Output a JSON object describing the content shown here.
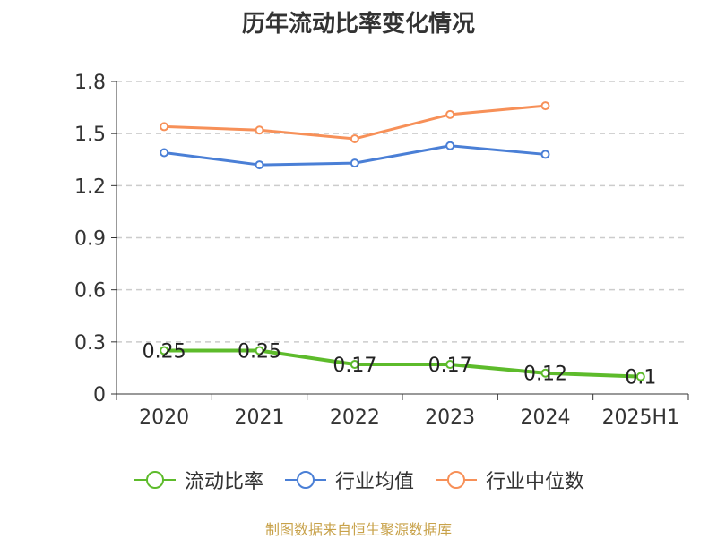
{
  "chart_data": {
    "type": "line",
    "title": "历年流动比率变化情况",
    "categories": [
      "2020",
      "2021",
      "2022",
      "2023",
      "2024",
      "2025H1"
    ],
    "y_ticks": [
      "0",
      "0.3",
      "0.6",
      "0.9",
      "1.2",
      "1.5",
      "1.8"
    ],
    "ylim": [
      0,
      1.8
    ],
    "grid": true,
    "legend_position": "bottom",
    "series": [
      {
        "name": "流动比率",
        "color": "#5dbb2b",
        "values": [
          0.25,
          0.25,
          0.17,
          0.17,
          0.12,
          0.1
        ],
        "labels": [
          "0.25",
          "0.25",
          "0.17",
          "0.17",
          "0.12",
          "0.1"
        ]
      },
      {
        "name": "行业均值",
        "color": "#4a7fd6",
        "values": [
          1.39,
          1.32,
          1.33,
          1.43,
          1.38,
          null
        ]
      },
      {
        "name": "行业中位数",
        "color": "#f79058",
        "values": [
          1.54,
          1.52,
          1.47,
          1.61,
          1.66,
          null
        ]
      }
    ]
  },
  "source": "制图数据来自恒生聚源数据库"
}
